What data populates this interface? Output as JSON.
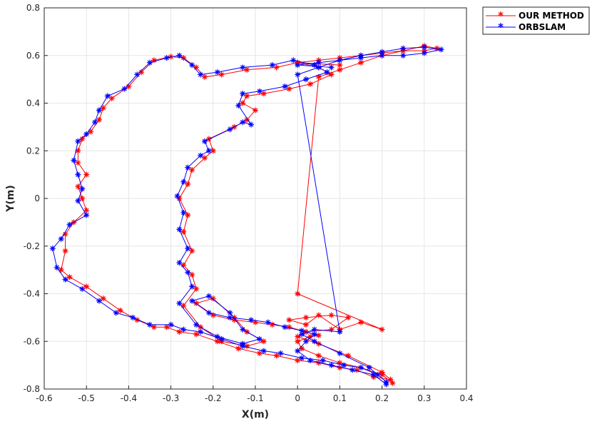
{
  "chart_data": {
    "type": "line",
    "xlabel": "X(m)",
    "ylabel": "Y(m)",
    "xlim": [
      -0.6,
      0.4
    ],
    "ylim": [
      -0.8,
      0.8
    ],
    "x_ticks": [
      "-0.6",
      "-0.5",
      "-0.4",
      "-0.3",
      "-0.2",
      "-0.1",
      "0",
      "0.1",
      "0.2",
      "0.3",
      "0.4"
    ],
    "y_ticks": [
      "-0.8",
      "-0.6",
      "-0.4",
      "-0.2",
      "0",
      "0.2",
      "0.4",
      "0.6",
      "0.8"
    ],
    "grid": true,
    "legend_position": "outside-top-right",
    "series": [
      {
        "name": "OUR METHOD",
        "color": "#ff0000",
        "marker": "asterisk",
        "points": [
          [
            0.225,
            -0.775
          ],
          [
            0.2,
            -0.74
          ],
          [
            0.15,
            -0.71
          ],
          [
            0.1,
            -0.69
          ],
          [
            0.05,
            -0.66
          ],
          [
            0.01,
            -0.63
          ],
          [
            0.0,
            -0.6
          ],
          [
            0.03,
            -0.58
          ],
          [
            0.05,
            -0.575
          ],
          [
            0.02,
            -0.56
          ],
          [
            -0.02,
            -0.54
          ],
          [
            -0.06,
            -0.53
          ],
          [
            -0.1,
            -0.52
          ],
          [
            -0.15,
            -0.51
          ],
          [
            -0.2,
            -0.49
          ],
          [
            -0.24,
            -0.44
          ],
          [
            -0.2,
            -0.42
          ],
          [
            -0.15,
            -0.5
          ],
          [
            -0.12,
            -0.56
          ],
          [
            -0.08,
            -0.6
          ],
          [
            -0.12,
            -0.62
          ],
          [
            -0.18,
            -0.6
          ],
          [
            -0.23,
            -0.54
          ],
          [
            -0.27,
            -0.45
          ],
          [
            -0.24,
            -0.38
          ],
          [
            -0.25,
            -0.32
          ],
          [
            -0.27,
            -0.28
          ],
          [
            -0.25,
            -0.22
          ],
          [
            -0.27,
            -0.14
          ],
          [
            -0.26,
            -0.07
          ],
          [
            -0.28,
            0.0
          ],
          [
            -0.26,
            0.06
          ],
          [
            -0.25,
            0.12
          ],
          [
            -0.22,
            0.17
          ],
          [
            -0.2,
            0.2
          ],
          [
            -0.21,
            0.25
          ],
          [
            -0.15,
            0.3
          ],
          [
            -0.12,
            0.33
          ],
          [
            -0.1,
            0.37
          ],
          [
            -0.13,
            0.4
          ],
          [
            -0.12,
            0.43
          ],
          [
            -0.08,
            0.44
          ],
          [
            -0.02,
            0.46
          ],
          [
            0.03,
            0.48
          ],
          [
            0.08,
            0.52
          ],
          [
            0.05,
            0.55
          ],
          [
            0.0,
            0.57
          ],
          [
            -0.05,
            0.55
          ],
          [
            -0.12,
            0.54
          ],
          [
            -0.18,
            0.52
          ],
          [
            -0.22,
            0.51
          ],
          [
            -0.24,
            0.55
          ],
          [
            -0.27,
            0.59
          ],
          [
            -0.3,
            0.595
          ],
          [
            -0.34,
            0.58
          ],
          [
            -0.37,
            0.53
          ],
          [
            -0.4,
            0.47
          ],
          [
            -0.44,
            0.42
          ],
          [
            -0.46,
            0.38
          ],
          [
            -0.47,
            0.33
          ],
          [
            -0.49,
            0.28
          ],
          [
            -0.51,
            0.25
          ],
          [
            -0.52,
            0.2
          ],
          [
            -0.52,
            0.15
          ],
          [
            -0.5,
            0.1
          ],
          [
            -0.52,
            0.05
          ],
          [
            -0.51,
            0.0
          ],
          [
            -0.5,
            -0.05
          ],
          [
            -0.53,
            -0.1
          ],
          [
            -0.55,
            -0.15
          ],
          [
            -0.55,
            -0.22
          ],
          [
            -0.56,
            -0.3
          ],
          [
            -0.54,
            -0.33
          ],
          [
            -0.5,
            -0.37
          ],
          [
            -0.46,
            -0.42
          ],
          [
            -0.42,
            -0.47
          ],
          [
            -0.38,
            -0.51
          ],
          [
            -0.34,
            -0.54
          ],
          [
            -0.31,
            -0.54
          ],
          [
            -0.28,
            -0.56
          ],
          [
            -0.24,
            -0.57
          ],
          [
            -0.19,
            -0.6
          ],
          [
            -0.14,
            -0.63
          ],
          [
            -0.09,
            -0.65
          ],
          [
            -0.05,
            -0.66
          ],
          [
            0.0,
            -0.68
          ],
          [
            0.05,
            -0.69
          ],
          [
            0.1,
            -0.71
          ],
          [
            0.14,
            -0.72
          ],
          [
            0.18,
            -0.75
          ],
          [
            0.22,
            -0.76
          ],
          [
            0.2,
            -0.73
          ],
          [
            0.12,
            -0.66
          ],
          [
            0.05,
            -0.61
          ],
          [
            0.0,
            -0.58
          ],
          [
            0.02,
            -0.56
          ],
          [
            0.08,
            -0.55
          ],
          [
            0.12,
            -0.5
          ],
          [
            0.08,
            -0.49
          ],
          [
            0.02,
            -0.5
          ],
          [
            -0.02,
            -0.51
          ],
          [
            0.02,
            -0.53
          ],
          [
            0.05,
            -0.49
          ],
          [
            0.1,
            -0.55
          ],
          [
            0.15,
            -0.52
          ],
          [
            0.2,
            -0.55
          ],
          [
            0.0,
            -0.4
          ],
          [
            0.05,
            0.51
          ],
          [
            0.1,
            0.54
          ],
          [
            0.15,
            0.57
          ],
          [
            0.2,
            0.6
          ],
          [
            0.25,
            0.62
          ],
          [
            0.3,
            0.64
          ],
          [
            0.33,
            0.63
          ],
          [
            0.3,
            0.62
          ],
          [
            0.25,
            0.62
          ],
          [
            0.2,
            0.61
          ],
          [
            0.15,
            0.6
          ],
          [
            0.1,
            0.59
          ],
          [
            0.05,
            0.58
          ],
          [
            0.0,
            0.57
          ],
          [
            0.1,
            0.56
          ]
        ]
      },
      {
        "name": "ORBSLAM",
        "color": "#0000ff",
        "marker": "asterisk",
        "points": [
          [
            0.21,
            -0.78
          ],
          [
            0.18,
            -0.74
          ],
          [
            0.13,
            -0.72
          ],
          [
            0.08,
            -0.7
          ],
          [
            0.03,
            -0.68
          ],
          [
            0.0,
            -0.64
          ],
          [
            0.02,
            -0.6
          ],
          [
            0.04,
            -0.57
          ],
          [
            0.01,
            -0.555
          ],
          [
            -0.03,
            -0.54
          ],
          [
            -0.07,
            -0.52
          ],
          [
            -0.11,
            -0.51
          ],
          [
            -0.16,
            -0.5
          ],
          [
            -0.21,
            -0.48
          ],
          [
            -0.25,
            -0.43
          ],
          [
            -0.21,
            -0.41
          ],
          [
            -0.16,
            -0.48
          ],
          [
            -0.13,
            -0.55
          ],
          [
            -0.09,
            -0.59
          ],
          [
            -0.13,
            -0.61
          ],
          [
            -0.19,
            -0.58
          ],
          [
            -0.24,
            -0.53
          ],
          [
            -0.28,
            -0.44
          ],
          [
            -0.25,
            -0.37
          ],
          [
            -0.26,
            -0.31
          ],
          [
            -0.28,
            -0.27
          ],
          [
            -0.26,
            -0.21
          ],
          [
            -0.28,
            -0.13
          ],
          [
            -0.27,
            -0.06
          ],
          [
            -0.285,
            0.01
          ],
          [
            -0.27,
            0.07
          ],
          [
            -0.26,
            0.13
          ],
          [
            -0.23,
            0.18
          ],
          [
            -0.21,
            0.2
          ],
          [
            -0.22,
            0.24
          ],
          [
            -0.16,
            0.29
          ],
          [
            -0.13,
            0.32
          ],
          [
            -0.11,
            0.31
          ],
          [
            -0.14,
            0.39
          ],
          [
            -0.13,
            0.44
          ],
          [
            -0.09,
            0.45
          ],
          [
            -0.03,
            0.47
          ],
          [
            0.02,
            0.5
          ],
          [
            0.07,
            0.53
          ],
          [
            0.04,
            0.56
          ],
          [
            -0.01,
            0.58
          ],
          [
            -0.06,
            0.56
          ],
          [
            -0.13,
            0.55
          ],
          [
            -0.19,
            0.53
          ],
          [
            -0.23,
            0.52
          ],
          [
            -0.25,
            0.56
          ],
          [
            -0.28,
            0.6
          ],
          [
            -0.31,
            0.59
          ],
          [
            -0.35,
            0.57
          ],
          [
            -0.38,
            0.52
          ],
          [
            -0.41,
            0.46
          ],
          [
            -0.45,
            0.43
          ],
          [
            -0.47,
            0.37
          ],
          [
            -0.48,
            0.32
          ],
          [
            -0.5,
            0.27
          ],
          [
            -0.52,
            0.24
          ],
          [
            -0.53,
            0.16
          ],
          [
            -0.52,
            0.1
          ],
          [
            -0.51,
            0.04
          ],
          [
            -0.52,
            -0.01
          ],
          [
            -0.5,
            -0.07
          ],
          [
            -0.54,
            -0.11
          ],
          [
            -0.56,
            -0.17
          ],
          [
            -0.58,
            -0.21
          ],
          [
            -0.57,
            -0.29
          ],
          [
            -0.55,
            -0.34
          ],
          [
            -0.51,
            -0.38
          ],
          [
            -0.47,
            -0.43
          ],
          [
            -0.43,
            -0.48
          ],
          [
            -0.39,
            -0.5
          ],
          [
            -0.35,
            -0.53
          ],
          [
            -0.3,
            -0.53
          ],
          [
            -0.27,
            -0.55
          ],
          [
            -0.23,
            -0.56
          ],
          [
            -0.18,
            -0.59
          ],
          [
            -0.13,
            -0.62
          ],
          [
            -0.08,
            -0.64
          ],
          [
            -0.04,
            -0.65
          ],
          [
            0.01,
            -0.67
          ],
          [
            0.06,
            -0.68
          ],
          [
            0.11,
            -0.7
          ],
          [
            0.15,
            -0.71
          ],
          [
            0.19,
            -0.74
          ],
          [
            0.21,
            -0.77
          ],
          [
            0.17,
            -0.71
          ],
          [
            0.1,
            -0.65
          ],
          [
            0.04,
            -0.6
          ],
          [
            0.01,
            -0.57
          ],
          [
            0.04,
            -0.55
          ],
          [
            0.1,
            -0.56
          ],
          [
            0.0,
            0.52
          ],
          [
            0.05,
            0.55
          ],
          [
            0.1,
            0.58
          ],
          [
            0.15,
            0.6
          ],
          [
            0.2,
            0.615
          ],
          [
            0.25,
            0.63
          ],
          [
            0.3,
            0.635
          ],
          [
            0.34,
            0.625
          ],
          [
            0.3,
            0.61
          ],
          [
            0.25,
            0.6
          ],
          [
            0.2,
            0.6
          ],
          [
            0.15,
            0.59
          ],
          [
            0.1,
            0.58
          ],
          [
            0.05,
            0.57
          ],
          [
            0.0,
            0.56
          ],
          [
            0.08,
            0.55
          ]
        ]
      }
    ]
  }
}
